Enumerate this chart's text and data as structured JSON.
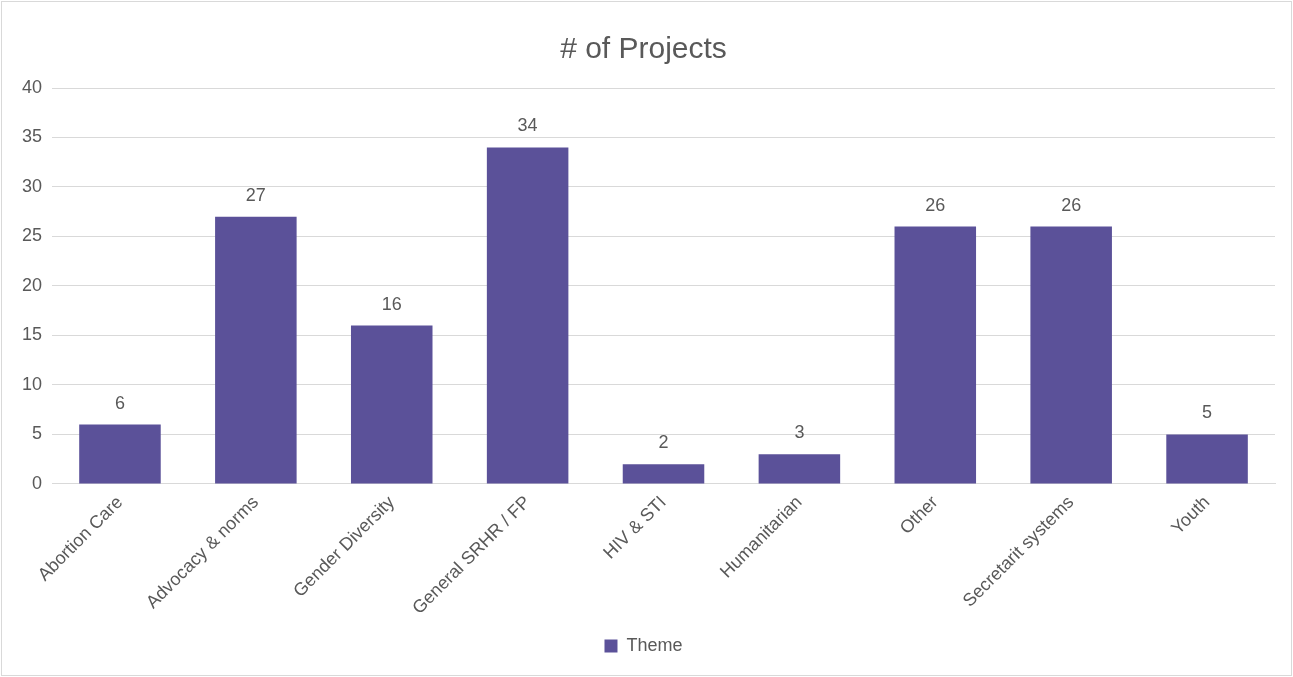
{
  "chart_data": {
    "type": "bar",
    "title": "# of Projects",
    "categories": [
      "Abortion Care",
      "Advocacy & norms",
      "Gender Diversity",
      "General SRHR / FP",
      "HIV & STI",
      "Humanitarian",
      "Other",
      "Secretarit systems",
      "Youth"
    ],
    "series": [
      {
        "name": "Theme",
        "color": "#5b5199",
        "values": [
          6,
          27,
          16,
          34,
          2,
          3,
          26,
          26,
          5
        ]
      }
    ],
    "ylim": [
      0,
      40
    ],
    "yticks": [
      0,
      5,
      10,
      15,
      20,
      25,
      30,
      35,
      40
    ],
    "grid": "y",
    "legend": "bottom",
    "data_labels": true
  }
}
